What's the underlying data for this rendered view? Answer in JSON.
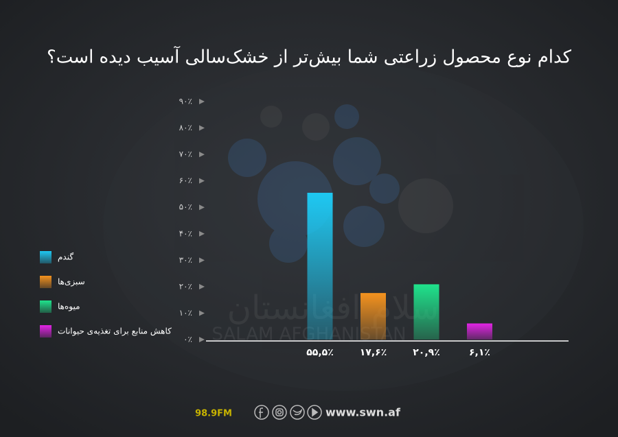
{
  "chart_data": {
    "type": "bar",
    "title": "کدام نوع محصول زراعتی شما بیش‌تر از خشک‌سالی آسیب دیده است؟",
    "categories": [
      "گندم",
      "سبزی‌ها",
      "میوه‌ها",
      "کاهش منابع برای تغذیه‌ی حیوانات"
    ],
    "values": [
      55.5,
      17.6,
      20.9,
      6.1
    ],
    "value_labels": [
      "۵۵,۵٪",
      "۱۷,۶٪",
      "۲۰,۹٪",
      "۶,۱٪"
    ],
    "colors": [
      "#1ec8f2",
      "#f5931e",
      "#1fe38c",
      "#e324e6"
    ],
    "ylim": [
      0,
      90
    ],
    "yticks": [
      {
        "value": 0,
        "label": "۰٪"
      },
      {
        "value": 10,
        "label": "۱۰٪"
      },
      {
        "value": 20,
        "label": "۲۰٪"
      },
      {
        "value": 30,
        "label": "۳۰٪"
      },
      {
        "value": 40,
        "label": "۴۰٪"
      },
      {
        "value": 50,
        "label": "۵۰٪"
      },
      {
        "value": 60,
        "label": "۶۰٪"
      },
      {
        "value": 70,
        "label": "۷۰٪"
      },
      {
        "value": 80,
        "label": "۸۰٪"
      },
      {
        "value": 90,
        "label": "۹۰٪"
      }
    ],
    "legend": "left"
  },
  "watermark": {
    "latin": "SALAM AFGHANISTAN",
    "persian": "سلام افغانستان"
  },
  "footer": {
    "frequency": "98.9FM",
    "website": "www.swn.af"
  }
}
